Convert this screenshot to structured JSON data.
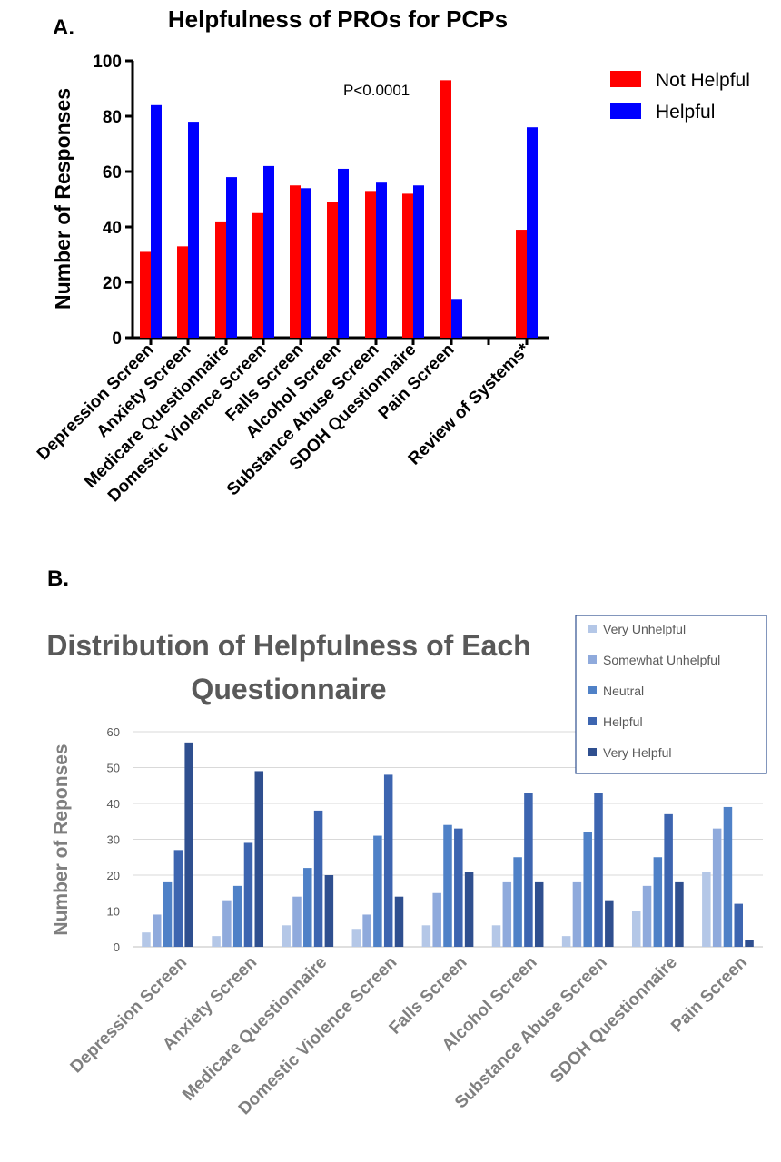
{
  "chart_data": [
    {
      "type": "bar",
      "panel_label": "A.",
      "title": "Helpfulness of  PROs for  PCPs",
      "xlabel": "",
      "ylabel": "Number of Responses",
      "ylim": [
        0,
        100
      ],
      "yticks": [
        0,
        20,
        40,
        60,
        80,
        100
      ],
      "annotation": "P<0.0001",
      "legend_position": "top-right",
      "categories": [
        "Depression Screen",
        "Anxiety Screen",
        "Medicare Questionnaire",
        "Domestic Violence Screen",
        "Falls Screen",
        "Alcohol Screen",
        "Substance Abuse Screen",
        "SDOH Questionnaire",
        "Pain Screen",
        "Review of Systems*"
      ],
      "series": [
        {
          "name": "Not Helpful",
          "color": "#ff0000",
          "values": [
            31,
            33,
            42,
            45,
            55,
            49,
            53,
            52,
            93,
            39
          ]
        },
        {
          "name": "Helpful",
          "color": "#0000ff",
          "values": [
            84,
            78,
            58,
            62,
            54,
            61,
            56,
            55,
            14,
            76
          ]
        }
      ],
      "grid": false
    },
    {
      "type": "bar",
      "panel_label": "B.",
      "title": "Distribution of Helpfulness of Each Questionnaire",
      "title_lines": [
        "Distribution of Helpfulness of Each",
        "Questionnaire"
      ],
      "xlabel": "",
      "ylabel": "Number of Reponses",
      "ylim": [
        0,
        60
      ],
      "yticks": [
        0,
        10,
        20,
        30,
        40,
        50,
        60
      ],
      "legend_position": "top-right",
      "categories": [
        "Depression Screen",
        "Anxiety Screen",
        "Medicare Questionnaire",
        "Domestic Violence Screen",
        "Falls Screen",
        "Alcohol Screen",
        "Substance Abuse Screen",
        "SDOH Questionnaire",
        "Pain Screen"
      ],
      "series": [
        {
          "name": "Very Unhelpful",
          "color": "#b4c7e7",
          "values": [
            4,
            3,
            6,
            5,
            6,
            6,
            3,
            10,
            21
          ]
        },
        {
          "name": "Somewhat Unhelpful",
          "color": "#8faadc",
          "values": [
            9,
            13,
            14,
            9,
            15,
            18,
            18,
            17,
            33
          ]
        },
        {
          "name": "Neutral",
          "color": "#4f81c7",
          "values": [
            18,
            17,
            22,
            31,
            34,
            25,
            32,
            25,
            39
          ]
        },
        {
          "name": "Helpful",
          "color": "#3d65b0",
          "values": [
            27,
            29,
            38,
            48,
            33,
            43,
            43,
            37,
            12
          ]
        },
        {
          "name": "Very Helpful",
          "color": "#2f4f8f",
          "values": [
            57,
            49,
            20,
            14,
            21,
            18,
            13,
            18,
            2
          ]
        }
      ],
      "grid": true
    }
  ]
}
